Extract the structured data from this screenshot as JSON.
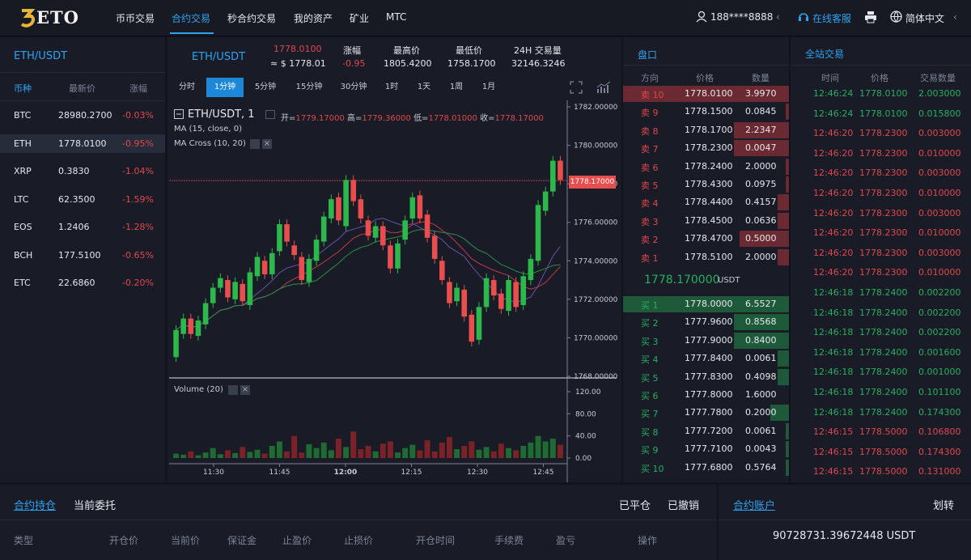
{
  "nav": {
    "logo": "ETO",
    "items": [
      {
        "label": "币币交易",
        "active": false
      },
      {
        "label": "合约交易",
        "active": true
      },
      {
        "label": "秒合约交易",
        "active": false
      },
      {
        "label": "我的资产",
        "active": false
      },
      {
        "label": "矿业",
        "active": false
      },
      {
        "label": "MTC",
        "active": false
      }
    ],
    "user": "188****8888",
    "service": "在线客服",
    "language": "简体中文"
  },
  "markets": {
    "title": "ETH/USDT",
    "headers": [
      "币种",
      "最新价",
      "涨幅"
    ],
    "rows": [
      {
        "coin": "BTC",
        "price": "28980.2700",
        "change": "-0.03%"
      },
      {
        "coin": "ETH",
        "price": "1778.0100",
        "change": "-0.95%"
      },
      {
        "coin": "XRP",
        "price": "0.3830",
        "change": "-1.04%"
      },
      {
        "coin": "LTC",
        "price": "62.3500",
        "change": "-1.59%"
      },
      {
        "coin": "EOS",
        "price": "1.2406",
        "change": "-1.28%"
      },
      {
        "coin": "BCH",
        "price": "177.5100",
        "change": "-0.65%"
      },
      {
        "coin": "ETC",
        "price": "22.6860",
        "change": "-0.20%"
      }
    ]
  },
  "ticker": {
    "pair": "ETH/USDT",
    "last": "1778.0100",
    "last_usd": "≈ $ 1778.01",
    "change_label": "涨幅",
    "change": "-0.95",
    "high_label": "最高价",
    "high": "1805.4200",
    "low_label": "最低价",
    "low": "1758.1700",
    "vol_label": "24H 交易量",
    "vol": "32146.3246"
  },
  "timeframes": [
    "分时",
    "1分钟",
    "5分钟",
    "15分钟",
    "30分钟",
    "1时",
    "1天",
    "1周",
    "1月"
  ],
  "chart": {
    "legend_pair": "ETH/USDT, 1",
    "open_label": "开=",
    "open": "1779.17000",
    "high_label": "高=",
    "high": "1779.36000",
    "low_label": "低=",
    "low": "1778.01000",
    "close_label": "收=",
    "close": "1778.17000",
    "ma_label": "MA (15, close, 0)",
    "macross_label": "MA Cross (10, 20)",
    "volume_label": "Volume (20)",
    "price_tag": "1778.17000",
    "up_color": "#2db84c",
    "down_color": "#e84e4e"
  },
  "chart_data": {
    "type": "candlestick",
    "price_axis": [
      "1782.00000",
      "1780.00000",
      "1778.00000",
      "1776.00000",
      "1774.00000",
      "1772.00000",
      "1770.00000",
      "1768.00000"
    ],
    "volume_axis": [
      "120.00",
      "80.00",
      "40.00",
      "0.00"
    ],
    "time_axis": [
      "11:30",
      "11:45",
      "12:00",
      "12:15",
      "12:30",
      "12:45"
    ],
    "ylim": [
      1768,
      1782
    ],
    "volume_ylim": [
      0,
      120
    ],
    "candles": [
      [
        1769.0,
        1770.4
      ],
      [
        1770.2,
        1771.0
      ],
      [
        1771.0,
        1770.2
      ],
      [
        1770.1,
        1770.9
      ],
      [
        1770.7,
        1771.8
      ],
      [
        1771.8,
        1772.6
      ],
      [
        1772.6,
        1773.1
      ],
      [
        1773.0,
        1772.1
      ],
      [
        1772.0,
        1772.9
      ],
      [
        1772.8,
        1771.9
      ],
      [
        1771.7,
        1773.4
      ],
      [
        1773.2,
        1774.2
      ],
      [
        1774.0,
        1773.3
      ],
      [
        1773.3,
        1774.4
      ],
      [
        1774.5,
        1775.9
      ],
      [
        1775.9,
        1775.0
      ],
      [
        1774.8,
        1774.3
      ],
      [
        1774.2,
        1773.0
      ],
      [
        1772.9,
        1774.1
      ],
      [
        1774.0,
        1775.1
      ],
      [
        1775.0,
        1776.3
      ],
      [
        1776.2,
        1777.2
      ],
      [
        1777.3,
        1776.1
      ],
      [
        1775.8,
        1778.2
      ],
      [
        1778.2,
        1777.1
      ],
      [
        1777.2,
        1776.2
      ],
      [
        1776.1,
        1775.3
      ],
      [
        1775.2,
        1775.8
      ],
      [
        1775.8,
        1774.8
      ],
      [
        1774.8,
        1773.6
      ],
      [
        1773.6,
        1774.9
      ],
      [
        1775.1,
        1776.1
      ],
      [
        1776.2,
        1777.3
      ],
      [
        1777.4,
        1776.2
      ],
      [
        1776.4,
        1775.2
      ],
      [
        1775.3,
        1774.1
      ],
      [
        1774.0,
        1773.0
      ],
      [
        1772.9,
        1771.8
      ],
      [
        1771.9,
        1772.6
      ],
      [
        1772.5,
        1771.1
      ],
      [
        1771.2,
        1769.8
      ],
      [
        1769.9,
        1771.6
      ],
      [
        1771.6,
        1773.1
      ],
      [
        1773.0,
        1772.2
      ],
      [
        1772.3,
        1771.5
      ],
      [
        1771.4,
        1773.0
      ],
      [
        1772.9,
        1771.6
      ],
      [
        1771.7,
        1773.2
      ],
      [
        1773.0,
        1774.1
      ],
      [
        1774.0,
        1776.9
      ],
      [
        1776.6,
        1777.6
      ],
      [
        1777.6,
        1779.2
      ],
      [
        1779.2,
        1778.2
      ]
    ],
    "volumes": [
      8,
      6,
      12,
      5,
      10,
      18,
      7,
      14,
      9,
      20,
      11,
      15,
      8,
      22,
      30,
      12,
      40,
      10,
      25,
      18,
      28,
      14,
      35,
      20,
      48,
      16,
      22,
      12,
      26,
      30,
      10,
      18,
      24,
      14,
      32,
      12,
      28,
      38,
      16,
      22,
      30,
      15,
      20,
      12,
      26,
      18,
      14,
      22,
      28,
      40,
      30,
      35,
      24
    ],
    "ma_series": "MA (15, close, 0)",
    "cross_series": "MA Cross (10, 20)"
  },
  "book": {
    "title": "盘口",
    "headers": [
      "方向",
      "价格",
      "数量"
    ],
    "asks": [
      {
        "side": "卖 10",
        "price": "1778.0100",
        "qty": "3.9970",
        "depth": 0.32
      },
      {
        "side": "卖 9",
        "price": "1778.1500",
        "qty": "0.0845",
        "depth": 0.02
      },
      {
        "side": "卖 8",
        "price": "1778.1700",
        "qty": "2.2347",
        "depth": 0.33
      },
      {
        "side": "卖 7",
        "price": "1778.2300",
        "qty": "0.0047",
        "depth": 0.33
      },
      {
        "side": "卖 6",
        "price": "1778.2400",
        "qty": "2.0000",
        "depth": 0.02
      },
      {
        "side": "卖 5",
        "price": "1778.4300",
        "qty": "0.0975",
        "depth": 0.02
      },
      {
        "side": "卖 4",
        "price": "1778.4400",
        "qty": "0.4157",
        "depth": 0.07
      },
      {
        "side": "卖 3",
        "price": "1778.4500",
        "qty": "0.0636",
        "depth": 0.07
      },
      {
        "side": "卖 2",
        "price": "1778.4700",
        "qty": "0.5000",
        "depth": 0.3
      },
      {
        "side": "卖 1",
        "price": "1778.5100",
        "qty": "2.0000",
        "depth": 0.07
      }
    ],
    "mid": "1778.170000",
    "mid_unit": "USDT",
    "bids": [
      {
        "side": "买 1",
        "price": "1778.0000",
        "qty": "6.5527",
        "depth": 0.33
      },
      {
        "side": "买 2",
        "price": "1777.9600",
        "qty": "0.8568",
        "depth": 0.33
      },
      {
        "side": "买 3",
        "price": "1777.9000",
        "qty": "0.8400",
        "depth": 0.33
      },
      {
        "side": "买 4",
        "price": "1777.8400",
        "qty": "0.0061",
        "depth": 0.07
      },
      {
        "side": "买 5",
        "price": "1777.8300",
        "qty": "0.4098",
        "depth": 0.07
      },
      {
        "side": "买 6",
        "price": "1777.8000",
        "qty": "1.6000",
        "depth": 0.0
      },
      {
        "side": "买 7",
        "price": "1777.7800",
        "qty": "0.2000",
        "depth": 0.11
      },
      {
        "side": "买 8",
        "price": "1777.7200",
        "qty": "0.0061",
        "depth": 0.02
      },
      {
        "side": "买 9",
        "price": "1777.7100",
        "qty": "0.0043",
        "depth": 0.02
      },
      {
        "side": "买 10",
        "price": "1777.6800",
        "qty": "0.5764",
        "depth": 0.02
      }
    ]
  },
  "trades": {
    "title": "全站交易",
    "headers": [
      "时间",
      "价格",
      "交易数量"
    ],
    "rows": [
      {
        "time": "12:46:24",
        "price": "1778.0100",
        "qty": "2.003000",
        "side": "buy"
      },
      {
        "time": "12:46:24",
        "price": "1778.0100",
        "qty": "0.015800",
        "side": "buy"
      },
      {
        "time": "12:46:20",
        "price": "1778.2300",
        "qty": "0.003000",
        "side": "sell"
      },
      {
        "time": "12:46:20",
        "price": "1778.2300",
        "qty": "0.010000",
        "side": "sell"
      },
      {
        "time": "12:46:20",
        "price": "1778.2300",
        "qty": "0.003000",
        "side": "sell"
      },
      {
        "time": "12:46:20",
        "price": "1778.2300",
        "qty": "0.010000",
        "side": "sell"
      },
      {
        "time": "12:46:20",
        "price": "1778.2300",
        "qty": "0.003000",
        "side": "sell"
      },
      {
        "time": "12:46:20",
        "price": "1778.2300",
        "qty": "0.010000",
        "side": "sell"
      },
      {
        "time": "12:46:20",
        "price": "1778.2300",
        "qty": "0.003000",
        "side": "sell"
      },
      {
        "time": "12:46:20",
        "price": "1778.2300",
        "qty": "0.010000",
        "side": "sell"
      },
      {
        "time": "12:46:18",
        "price": "1778.2400",
        "qty": "0.002200",
        "side": "buy"
      },
      {
        "time": "12:46:18",
        "price": "1778.2400",
        "qty": "0.002200",
        "side": "buy"
      },
      {
        "time": "12:46:18",
        "price": "1778.2400",
        "qty": "0.002200",
        "side": "buy"
      },
      {
        "time": "12:46:18",
        "price": "1778.2400",
        "qty": "0.001600",
        "side": "buy"
      },
      {
        "time": "12:46:18",
        "price": "1778.2400",
        "qty": "0.001000",
        "side": "buy"
      },
      {
        "time": "12:46:18",
        "price": "1778.2400",
        "qty": "0.101100",
        "side": "buy"
      },
      {
        "time": "12:46:18",
        "price": "1778.2400",
        "qty": "0.174300",
        "side": "buy"
      },
      {
        "time": "12:46:15",
        "price": "1778.5000",
        "qty": "0.106800",
        "side": "sell"
      },
      {
        "time": "12:46:15",
        "price": "1778.5000",
        "qty": "0.174300",
        "side": "sell"
      },
      {
        "time": "12:46:15",
        "price": "1778.5000",
        "qty": "0.131000",
        "side": "sell"
      }
    ]
  },
  "positions": {
    "tab_holdings": "合约持仓",
    "tab_orders": "当前委托",
    "closed": "已平仓",
    "cancelled": "已撤销",
    "headers": [
      "类型",
      "开仓价",
      "当前价",
      "保证金",
      "止盈价",
      "止损价",
      "开仓时间",
      "手续费",
      "盈亏",
      "操作"
    ]
  },
  "account": {
    "title": "合约账户",
    "transfer": "划转",
    "balance": "90728731.39672448 USDT"
  }
}
